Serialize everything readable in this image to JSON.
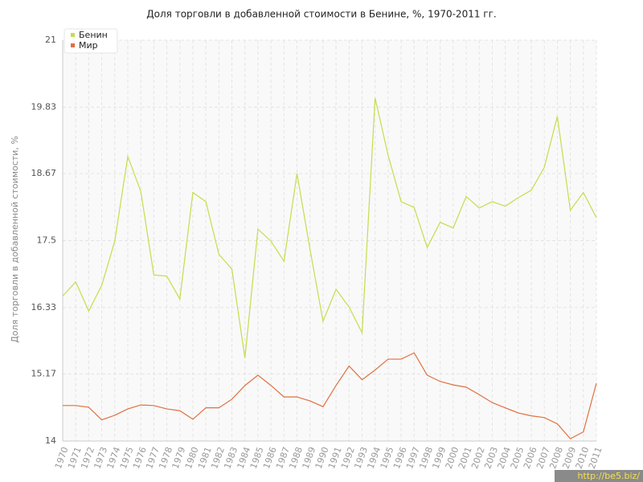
{
  "chart_data": {
    "type": "line",
    "title": "Доля торговли в добавленной стоимости в Бенине, %, 1970-2011 гг.",
    "y_label": "Доля торговли в добавленной стоимости, %",
    "categories": [
      "1970",
      "1971",
      "1972",
      "1973",
      "1974",
      "1975",
      "1976",
      "1977",
      "1978",
      "1979",
      "1980",
      "1981",
      "1982",
      "1983",
      "1984",
      "1985",
      "1986",
      "1987",
      "1988",
      "1989",
      "1990",
      "1991",
      "1992",
      "1993",
      "1994",
      "1995",
      "1996",
      "1997",
      "1998",
      "1999",
      "2000",
      "2001",
      "2002",
      "2003",
      "2004",
      "2005",
      "2006",
      "2007",
      "2008",
      "2009",
      "2010",
      "2011"
    ],
    "series": [
      {
        "name": "Бенин",
        "color": "#c3de4c",
        "values": [
          16.53,
          16.78,
          16.27,
          16.72,
          17.49,
          18.97,
          18.36,
          16.9,
          16.88,
          16.48,
          18.34,
          18.18,
          17.26,
          17.0,
          15.45,
          17.7,
          17.49,
          17.14,
          18.67,
          17.35,
          16.09,
          16.65,
          16.34,
          15.89,
          19.99,
          18.99,
          18.18,
          18.08,
          17.38,
          17.82,
          17.72,
          18.27,
          18.07,
          18.18,
          18.1,
          18.25,
          18.38,
          18.78,
          19.67,
          18.03,
          18.34,
          17.9
        ]
      },
      {
        "name": "Мир",
        "color": "#e07040",
        "values": [
          14.62,
          14.62,
          14.59,
          14.37,
          14.45,
          14.56,
          14.63,
          14.62,
          14.56,
          14.53,
          14.38,
          14.58,
          14.58,
          14.73,
          14.97,
          15.15,
          14.97,
          14.77,
          14.77,
          14.7,
          14.6,
          14.97,
          15.31,
          15.07,
          15.24,
          15.43,
          15.43,
          15.54,
          15.15,
          15.04,
          14.98,
          14.94,
          14.81,
          14.67,
          14.58,
          14.49,
          14.44,
          14.41,
          14.3,
          14.04,
          14.16,
          15.01
        ]
      }
    ],
    "ylim": [
      14,
      21
    ],
    "yticks": [
      14,
      15.17,
      16.33,
      17.5,
      18.67,
      19.83,
      21
    ],
    "grid": true,
    "legend": "top-left",
    "watermark": "http://be5.biz/"
  }
}
